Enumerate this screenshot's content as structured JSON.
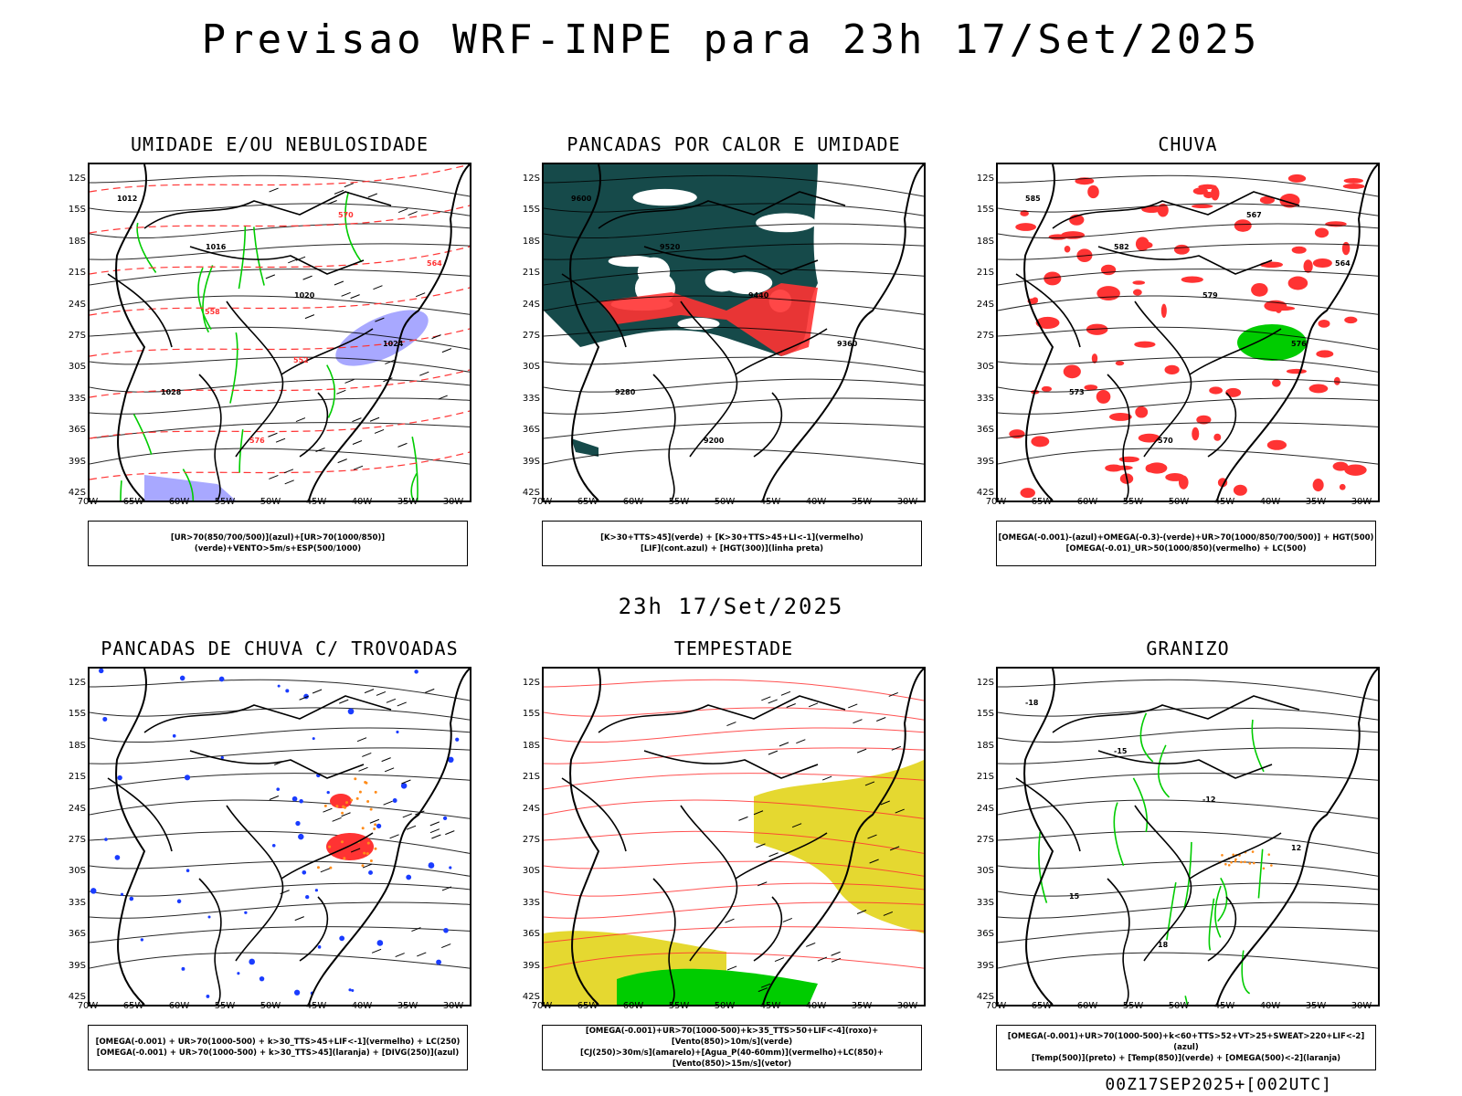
{
  "title": "Previsao WRF-INPE  para 23h 17/Set/2025",
  "mid_title": "23h 17/Set/2025",
  "footer": "00Z17SEP2025+[002UTC]",
  "axes": {
    "lat_labels": [
      "12S",
      "15S",
      "18S",
      "21S",
      "24S",
      "27S",
      "30S",
      "33S",
      "36S",
      "39S",
      "42S"
    ],
    "lon_labels": [
      "70W",
      "65W",
      "60W",
      "55W",
      "50W",
      "45W",
      "40W",
      "35W",
      "30W"
    ]
  },
  "colors": {
    "humidity_blue": "#a8a8ff",
    "green": "#00cc00",
    "red": "#ff3333",
    "dark_teal": "#164a4a",
    "yellow": "#e5d830",
    "orange": "#ff8c1a",
    "blue": "#1a3cff"
  },
  "panels": [
    {
      "title": "UMIDADE E/OU NEBULOSIDADE",
      "legend": [
        "[UR>70(850/700/500)](azul)+[UR>70(1000/850)](verde)+VENTO>5m/s+ESP(500/1000)"
      ],
      "labels": [
        "1012",
        "1016",
        "1020",
        "1024",
        "1028",
        "576",
        "570",
        "564",
        "558",
        "552"
      ]
    },
    {
      "title": "PANCADAS POR CALOR E UMIDADE",
      "legend": [
        "[K>30+TTS>45](verde) + [K>30+TTS>45+LI<-1](vermelho)",
        "[LIF](cont.azul) + [HGT(300)](linha preta)"
      ],
      "labels": [
        "9600",
        "9520",
        "9440",
        "9360",
        "9280",
        "9200"
      ]
    },
    {
      "title": "CHUVA",
      "legend": [
        "[OMEGA(-0.001)-(azul)+OMEGA(-0.3)-(verde)+UR>70(1000/850/700/500)] + HGT(500)",
        "[OMEGA(-0.01)_UR>50(1000/850)(vermelho) + LC(500)"
      ],
      "labels": [
        "585",
        "582",
        "579",
        "576",
        "573",
        "570",
        "567",
        "564"
      ]
    },
    {
      "title": "PANCADAS DE CHUVA C/ TROVOADAS",
      "legend": [
        "[OMEGA(-0.001) + UR>70(1000-500) + k>30_TTS>45+LIF<-1](vermelho) + LC(250)",
        "[OMEGA(-0.001) + UR>70(1000-500) + k>30_TTS>45](laranja) + [DIVG(250)](azul)"
      ],
      "labels": []
    },
    {
      "title": "TEMPESTADE",
      "legend": [
        "[OMEGA(-0.001)+UR>70(1000-500)+k>35_TTS>50+LIF<-4](roxo)+[Vento(850)>10m/s](verde)",
        "[CJ(250)>30m/s](amarelo)+[Agua_P(40-60mm)](vermelho)+LC(850)+[Vento(850)>15m/s](vetor)"
      ],
      "labels": []
    },
    {
      "title": "GRANIZO",
      "legend": [
        "[OMEGA(-0.001)+UR>70(1000-500)+k<60+TTS>52+VT>25+SWEAT>220+LIF<-2](azul)",
        "[Temp(500)](preto) + [Temp(850)](verde) + [OMEGA(500)<-2](laranja)"
      ],
      "labels": [
        "-18",
        "-15",
        "-12",
        "12",
        "15",
        "18"
      ]
    }
  ]
}
